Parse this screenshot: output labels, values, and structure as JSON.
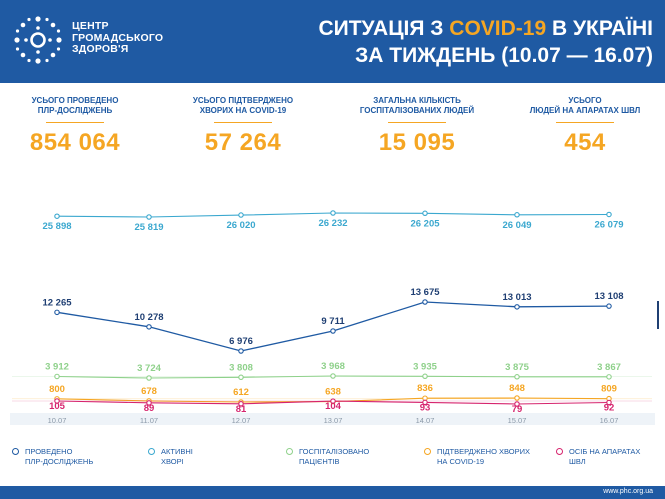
{
  "header": {
    "org_name": [
      "ЦЕНТР",
      "ГРОМАДСЬКОГО",
      "ЗДОРОВ'Я"
    ],
    "title_line1_pre": "СИТУАЦІЯ З ",
    "title_line1_hl": "COVID-19",
    "title_line1_post": " В УКРАЇНІ",
    "title_line2": "ЗА ТИЖДЕНЬ (10.07 — 16.07)"
  },
  "stats": [
    {
      "label_l1": "УСЬОГО ПРОВЕДЕНО",
      "label_l2": "ПЛР-ДОСЛІДЖЕНЬ",
      "value": "854 064"
    },
    {
      "label_l1": "УСЬОГО ПІДТВЕРДЖЕНО",
      "label_l2": "ХВОРИХ НА COVID-19",
      "value": "57 264"
    },
    {
      "label_l1": "ЗАГАЛЬНА КІЛЬКІСТЬ",
      "label_l2": "ГОСПІТАЛІЗОВАНИХ ЛЮДЕЙ",
      "value": "15 095"
    },
    {
      "label_l1": "УСЬОГО",
      "label_l2": "ЛЮДЕЙ НА АПАРАТАХ ШВЛ",
      "value": "454"
    }
  ],
  "chart_data": {
    "type": "line",
    "x": [
      "10.07",
      "11.07",
      "12.07",
      "13.07",
      "14.07",
      "15.07",
      "16.07"
    ],
    "series": [
      {
        "name": "ПРОВЕДЕНО ПЛР-ДОСЛІДЖЕНЬ",
        "color": "#1f5aa3",
        "labels": [
          "12 265",
          "10 278",
          "6 976",
          "9 711",
          "13 675",
          "13 013",
          "13 108"
        ],
        "values": [
          12265,
          10278,
          6976,
          9711,
          13675,
          13013,
          13108
        ]
      },
      {
        "name": "АКТИВНІ ХВОРІ",
        "color": "#3ba8cf",
        "labels": [
          "25 898",
          "25 819",
          "26 020",
          "26 232",
          "26 205",
          "26 049",
          "26 079"
        ],
        "values": [
          25898,
          25819,
          26020,
          26232,
          26205,
          26049,
          26079
        ]
      },
      {
        "name": "ГОСПІТАЛІЗОВАНО ПАЦІЄНТІВ",
        "color": "#8fd18b",
        "labels": [
          "3 912",
          "3 724",
          "3 808",
          "3 968",
          "3 935",
          "3 875",
          "3 867"
        ],
        "values": [
          3912,
          3724,
          3808,
          3968,
          3935,
          3875,
          3867
        ]
      },
      {
        "name": "ПІДТВЕРДЖЕНО ХВОРИХ НА COVID-19",
        "color": "#f5a623",
        "labels": [
          "800",
          "678",
          "612",
          "638",
          "836",
          "848",
          "809"
        ],
        "values": [
          800,
          678,
          612,
          638,
          836,
          848,
          809
        ]
      },
      {
        "name": "ОСІБ НА АПАРАТАХ ШВЛ",
        "color": "#d6246e",
        "labels": [
          "105",
          "89",
          "81",
          "104",
          "93",
          "79",
          "92"
        ],
        "values": [
          105,
          89,
          81,
          104,
          93,
          79,
          92
        ]
      }
    ]
  },
  "legend": [
    {
      "l1": "ПРОВЕДЕНО",
      "l2": "ПЛР-ДОСЛІДЖЕНЬ",
      "color": "#1f5aa3"
    },
    {
      "l1": "АКТИВНІ",
      "l2": "ХВОРІ",
      "color": "#3ba8cf"
    },
    {
      "l1": "ГОСПІТАЛІЗОВАНО",
      "l2": "ПАЦІЄНТІВ",
      "color": "#8fd18b"
    },
    {
      "l1": "ПІДТВЕРДЖЕНО ХВОРИХ",
      "l2": "НА COVID-19",
      "color": "#f5a623"
    },
    {
      "l1": "ОСІБ НА АПАРАТАХ",
      "l2": "ШВЛ",
      "color": "#d6246e"
    }
  ],
  "footer": {
    "url": "www.phc.org.ua"
  }
}
